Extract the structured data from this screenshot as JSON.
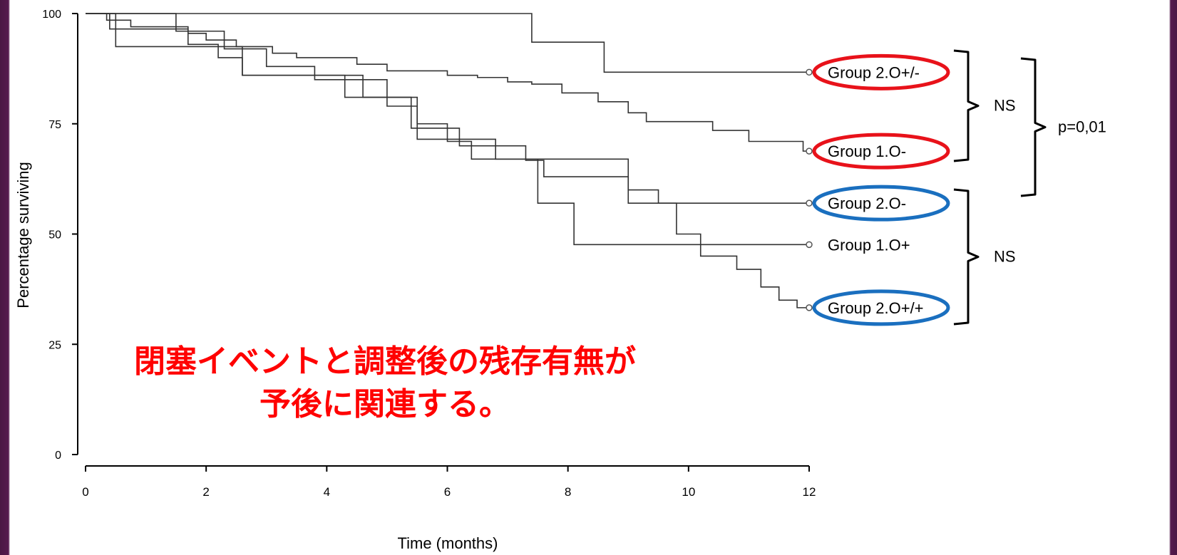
{
  "slide": {
    "background": "#4a1744"
  },
  "chart_data": {
    "type": "line",
    "step": true,
    "xlabel": "Time (months)",
    "ylabel": "Percentage surviving",
    "xlim": [
      0,
      12
    ],
    "ylim": [
      0,
      100
    ],
    "x_ticks": [
      0,
      2,
      4,
      6,
      8,
      10,
      12
    ],
    "x_tick_labels": [
      "0",
      "2",
      "4",
      "6",
      "8",
      "10",
      "12"
    ],
    "y_ticks": [
      0,
      25,
      50,
      75,
      100
    ],
    "y_tick_labels": [
      "0",
      "25",
      "50",
      "75",
      "100"
    ],
    "grid": false,
    "line_color": "#333333",
    "series": [
      {
        "name": "Group 2.O+/-",
        "circle_color": "#e8121a",
        "x": [
          0,
          7.4,
          8.6,
          12
        ],
        "y": [
          100,
          93.5,
          86.7,
          86.7
        ]
      },
      {
        "name": "Group 1.O-",
        "circle_color": "#e8121a",
        "x": [
          0,
          0.35,
          0.75,
          1.7,
          2.0,
          2.5,
          3.1,
          3.5,
          4.5,
          5.0,
          5.5,
          6.0,
          6.5,
          7.0,
          7.4,
          7.9,
          8.5,
          9.0,
          9.3,
          10.0,
          10.4,
          11.0,
          11.9,
          12
        ],
        "y": [
          100,
          98.5,
          97,
          95.5,
          94,
          92.5,
          91,
          90,
          88.5,
          87,
          87,
          86,
          85.5,
          84.5,
          84,
          82,
          80,
          77.5,
          75.5,
          75.5,
          73.5,
          71,
          68.8,
          68.8
        ]
      },
      {
        "name": "Group 2.O-",
        "circle_color": "#1a6fbf",
        "x": [
          0,
          0.4,
          1.7,
          2.2,
          2.6,
          4.6,
          5.1,
          5.4,
          6.2,
          7.3,
          7.6,
          9.0,
          12
        ],
        "y": [
          100,
          96.5,
          93,
          90,
          86,
          81,
          81,
          74,
          70,
          66.7,
          63,
          57,
          57
        ]
      },
      {
        "name": "Group 1.O+",
        "circle_color": null,
        "x": [
          0,
          0.5,
          2.2,
          2.6,
          3.8,
          4.3,
          4.8,
          5.5,
          6.2,
          6.8,
          7.5,
          8.1,
          12
        ],
        "y": [
          100,
          92.5,
          92.5,
          86,
          86,
          81,
          81,
          71.5,
          71.5,
          67,
          57,
          47.6,
          47.6
        ]
      },
      {
        "name": "Group 2.O+/+",
        "circle_color": "#1a6fbf",
        "x": [
          0,
          1.5,
          2.3,
          3.0,
          3.8,
          5.0,
          5.5,
          6.0,
          6.4,
          7.2,
          9.0,
          9.5,
          9.8,
          10.2,
          10.8,
          11.2,
          11.5,
          11.8,
          12
        ],
        "y": [
          100,
          96,
          92,
          88,
          85,
          79,
          75,
          71,
          67,
          67,
          60,
          57,
          50,
          45,
          42,
          38,
          35,
          33.3,
          33.3
        ]
      }
    ],
    "annotations": [
      {
        "text": "NS",
        "groups": [
          "Group 2.O+/-",
          "Group 1.O-"
        ]
      },
      {
        "text": "NS",
        "groups": [
          "Group 2.O-",
          "Group 1.O+",
          "Group 2.O+/+"
        ]
      },
      {
        "text": "p=0,01",
        "groups": [
          "Group 2.O+/-",
          "Group 1.O-",
          "Group 2.O-"
        ]
      }
    ]
  },
  "caption": {
    "line1": "閉塞イベントと調整後の残存有無が",
    "line2": "予後に関連する。",
    "color": "#ff0000"
  }
}
